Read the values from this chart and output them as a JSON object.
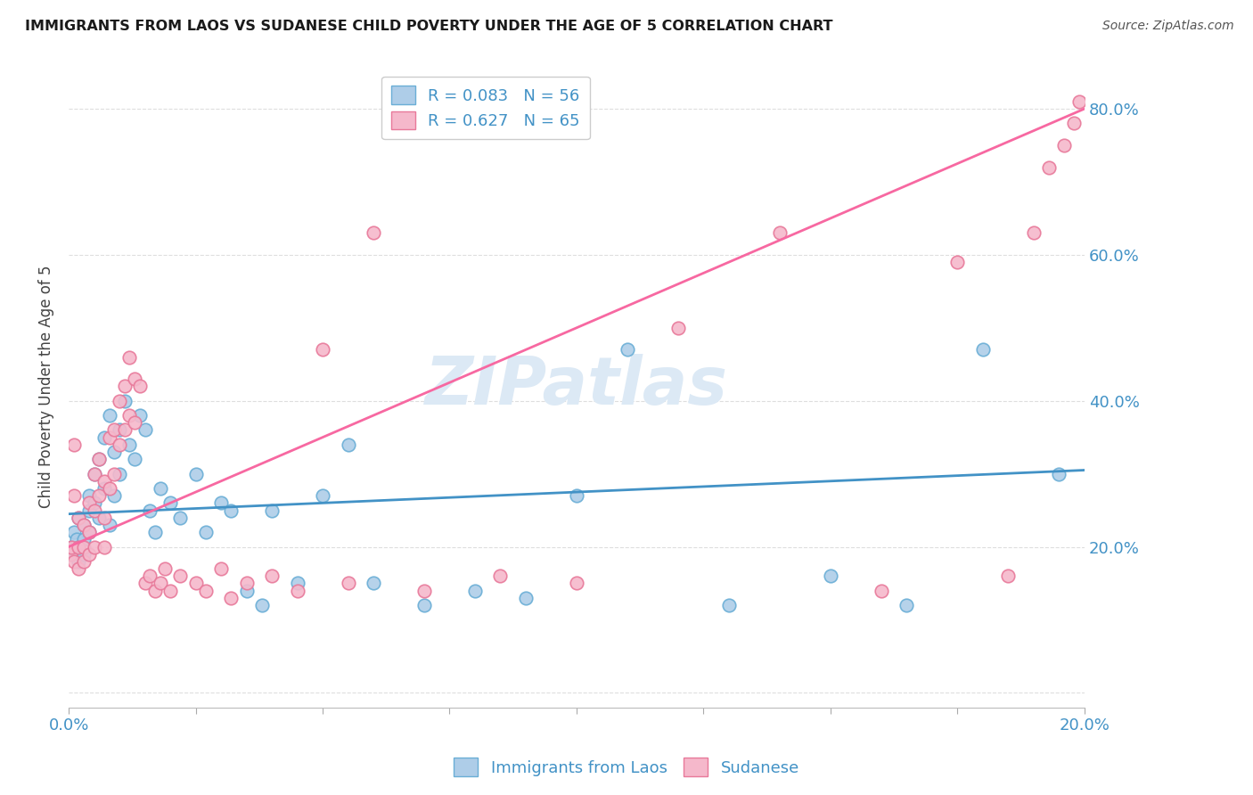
{
  "title": "IMMIGRANTS FROM LAOS VS SUDANESE CHILD POVERTY UNDER THE AGE OF 5 CORRELATION CHART",
  "source": "Source: ZipAtlas.com",
  "ylabel": "Child Poverty Under the Age of 5",
  "xlim": [
    0.0,
    0.2
  ],
  "ylim": [
    -0.02,
    0.86
  ],
  "yticks": [
    0.0,
    0.2,
    0.4,
    0.6,
    0.8
  ],
  "ytick_labels": [
    "",
    "20.0%",
    "40.0%",
    "60.0%",
    "80.0%"
  ],
  "legend_label1": "R = 0.083   N = 56",
  "legend_label2": "R = 0.627   N = 65",
  "scatter_color1": "#aecde8",
  "scatter_color2": "#f5b8cb",
  "edge_color1": "#6aaed6",
  "edge_color2": "#e8799a",
  "line_color1": "#4292c6",
  "line_color2": "#f768a1",
  "watermark": "ZIPatlas",
  "watermark_color": "#dce9f5",
  "background_color": "#ffffff",
  "grid_color": "#dedede",
  "laos_x": [
    0.0005,
    0.001,
    0.001,
    0.0015,
    0.002,
    0.002,
    0.002,
    0.003,
    0.003,
    0.003,
    0.004,
    0.004,
    0.004,
    0.005,
    0.005,
    0.006,
    0.006,
    0.007,
    0.007,
    0.008,
    0.008,
    0.009,
    0.009,
    0.01,
    0.01,
    0.011,
    0.012,
    0.013,
    0.014,
    0.015,
    0.016,
    0.017,
    0.018,
    0.02,
    0.022,
    0.025,
    0.027,
    0.03,
    0.032,
    0.035,
    0.038,
    0.04,
    0.045,
    0.05,
    0.055,
    0.06,
    0.07,
    0.08,
    0.09,
    0.1,
    0.11,
    0.13,
    0.15,
    0.165,
    0.18,
    0.195
  ],
  "laos_y": [
    0.2,
    0.22,
    0.19,
    0.21,
    0.24,
    0.2,
    0.18,
    0.23,
    0.21,
    0.19,
    0.27,
    0.25,
    0.22,
    0.3,
    0.26,
    0.32,
    0.24,
    0.35,
    0.28,
    0.38,
    0.23,
    0.33,
    0.27,
    0.36,
    0.3,
    0.4,
    0.34,
    0.32,
    0.38,
    0.36,
    0.25,
    0.22,
    0.28,
    0.26,
    0.24,
    0.3,
    0.22,
    0.26,
    0.25,
    0.14,
    0.12,
    0.25,
    0.15,
    0.27,
    0.34,
    0.15,
    0.12,
    0.14,
    0.13,
    0.27,
    0.47,
    0.12,
    0.16,
    0.12,
    0.47,
    0.3
  ],
  "sudanese_x": [
    0.0003,
    0.0005,
    0.001,
    0.001,
    0.001,
    0.002,
    0.002,
    0.002,
    0.003,
    0.003,
    0.003,
    0.004,
    0.004,
    0.004,
    0.005,
    0.005,
    0.005,
    0.006,
    0.006,
    0.007,
    0.007,
    0.007,
    0.008,
    0.008,
    0.009,
    0.009,
    0.01,
    0.01,
    0.011,
    0.011,
    0.012,
    0.012,
    0.013,
    0.013,
    0.014,
    0.015,
    0.016,
    0.017,
    0.018,
    0.019,
    0.02,
    0.022,
    0.025,
    0.027,
    0.03,
    0.032,
    0.035,
    0.04,
    0.045,
    0.05,
    0.055,
    0.06,
    0.07,
    0.085,
    0.1,
    0.12,
    0.14,
    0.16,
    0.175,
    0.185,
    0.19,
    0.193,
    0.196,
    0.198,
    0.199
  ],
  "sudanese_y": [
    0.19,
    0.2,
    0.34,
    0.27,
    0.18,
    0.24,
    0.2,
    0.17,
    0.23,
    0.2,
    0.18,
    0.26,
    0.22,
    0.19,
    0.3,
    0.25,
    0.2,
    0.32,
    0.27,
    0.29,
    0.24,
    0.2,
    0.35,
    0.28,
    0.36,
    0.3,
    0.4,
    0.34,
    0.42,
    0.36,
    0.46,
    0.38,
    0.43,
    0.37,
    0.42,
    0.15,
    0.16,
    0.14,
    0.15,
    0.17,
    0.14,
    0.16,
    0.15,
    0.14,
    0.17,
    0.13,
    0.15,
    0.16,
    0.14,
    0.47,
    0.15,
    0.63,
    0.14,
    0.16,
    0.15,
    0.5,
    0.63,
    0.14,
    0.59,
    0.16,
    0.63,
    0.72,
    0.75,
    0.78,
    0.81
  ],
  "laos_line_x": [
    0.0,
    0.2
  ],
  "laos_line_y": [
    0.245,
    0.305
  ],
  "sudanese_line_x": [
    0.0,
    0.2
  ],
  "sudanese_line_y": [
    0.2,
    0.8
  ]
}
